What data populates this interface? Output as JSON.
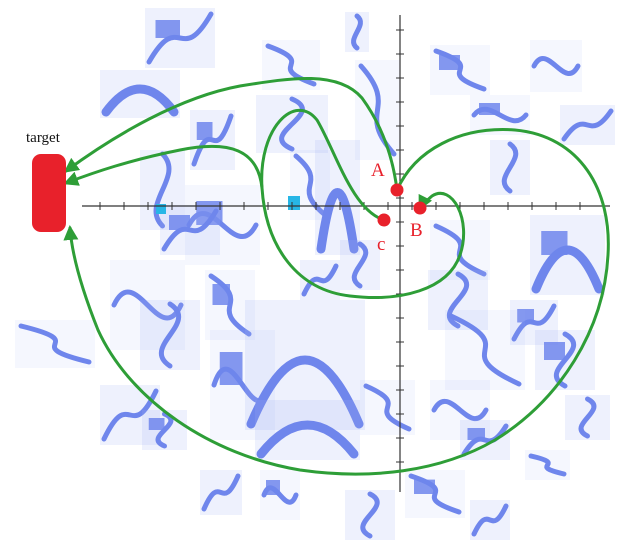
{
  "target": {
    "label": "target"
  },
  "points": {
    "a": {
      "label": "A"
    },
    "b": {
      "label": "B"
    },
    "c": {
      "label": "c"
    }
  },
  "colors": {
    "background": "#ffffff",
    "tiles": "#6f86ec",
    "tile_light": "#9fb0f4",
    "path": "#2e9e37",
    "marker": "#e8212b",
    "axis": "#333333",
    "cyan_patch": "#27b6e6"
  }
}
